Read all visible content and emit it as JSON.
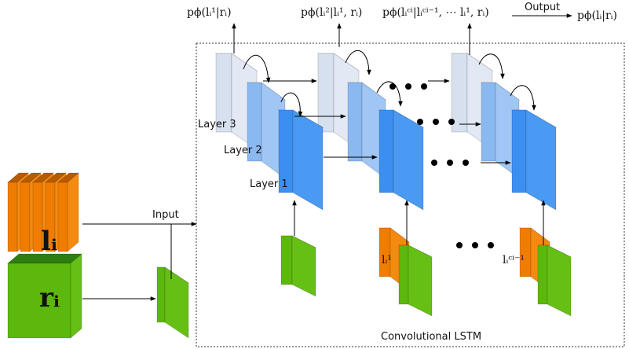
{
  "outputs": [
    "pϕ(lᵢ¹|rᵢ)",
    "pϕ(lᵢ²|lᵢ¹, rᵢ)",
    "pϕ(lᵢᶜⁱ|lᵢᶜⁱ⁻¹, ⋯ lᵢ¹, rᵢ)"
  ],
  "output_label": "Output",
  "final_output": "pϕ(lᵢ|rᵢ)",
  "layers": [
    "Layer 3",
    "Layer 2",
    "Layer 1"
  ],
  "input_label": "Input",
  "left_blocks": {
    "l": "lᵢ",
    "r": "rᵢ"
  },
  "step_inputs": [
    "lᵢ¹",
    "lᵢᶜⁱ⁻¹"
  ],
  "module_label": "Convolutional LSTM"
}
